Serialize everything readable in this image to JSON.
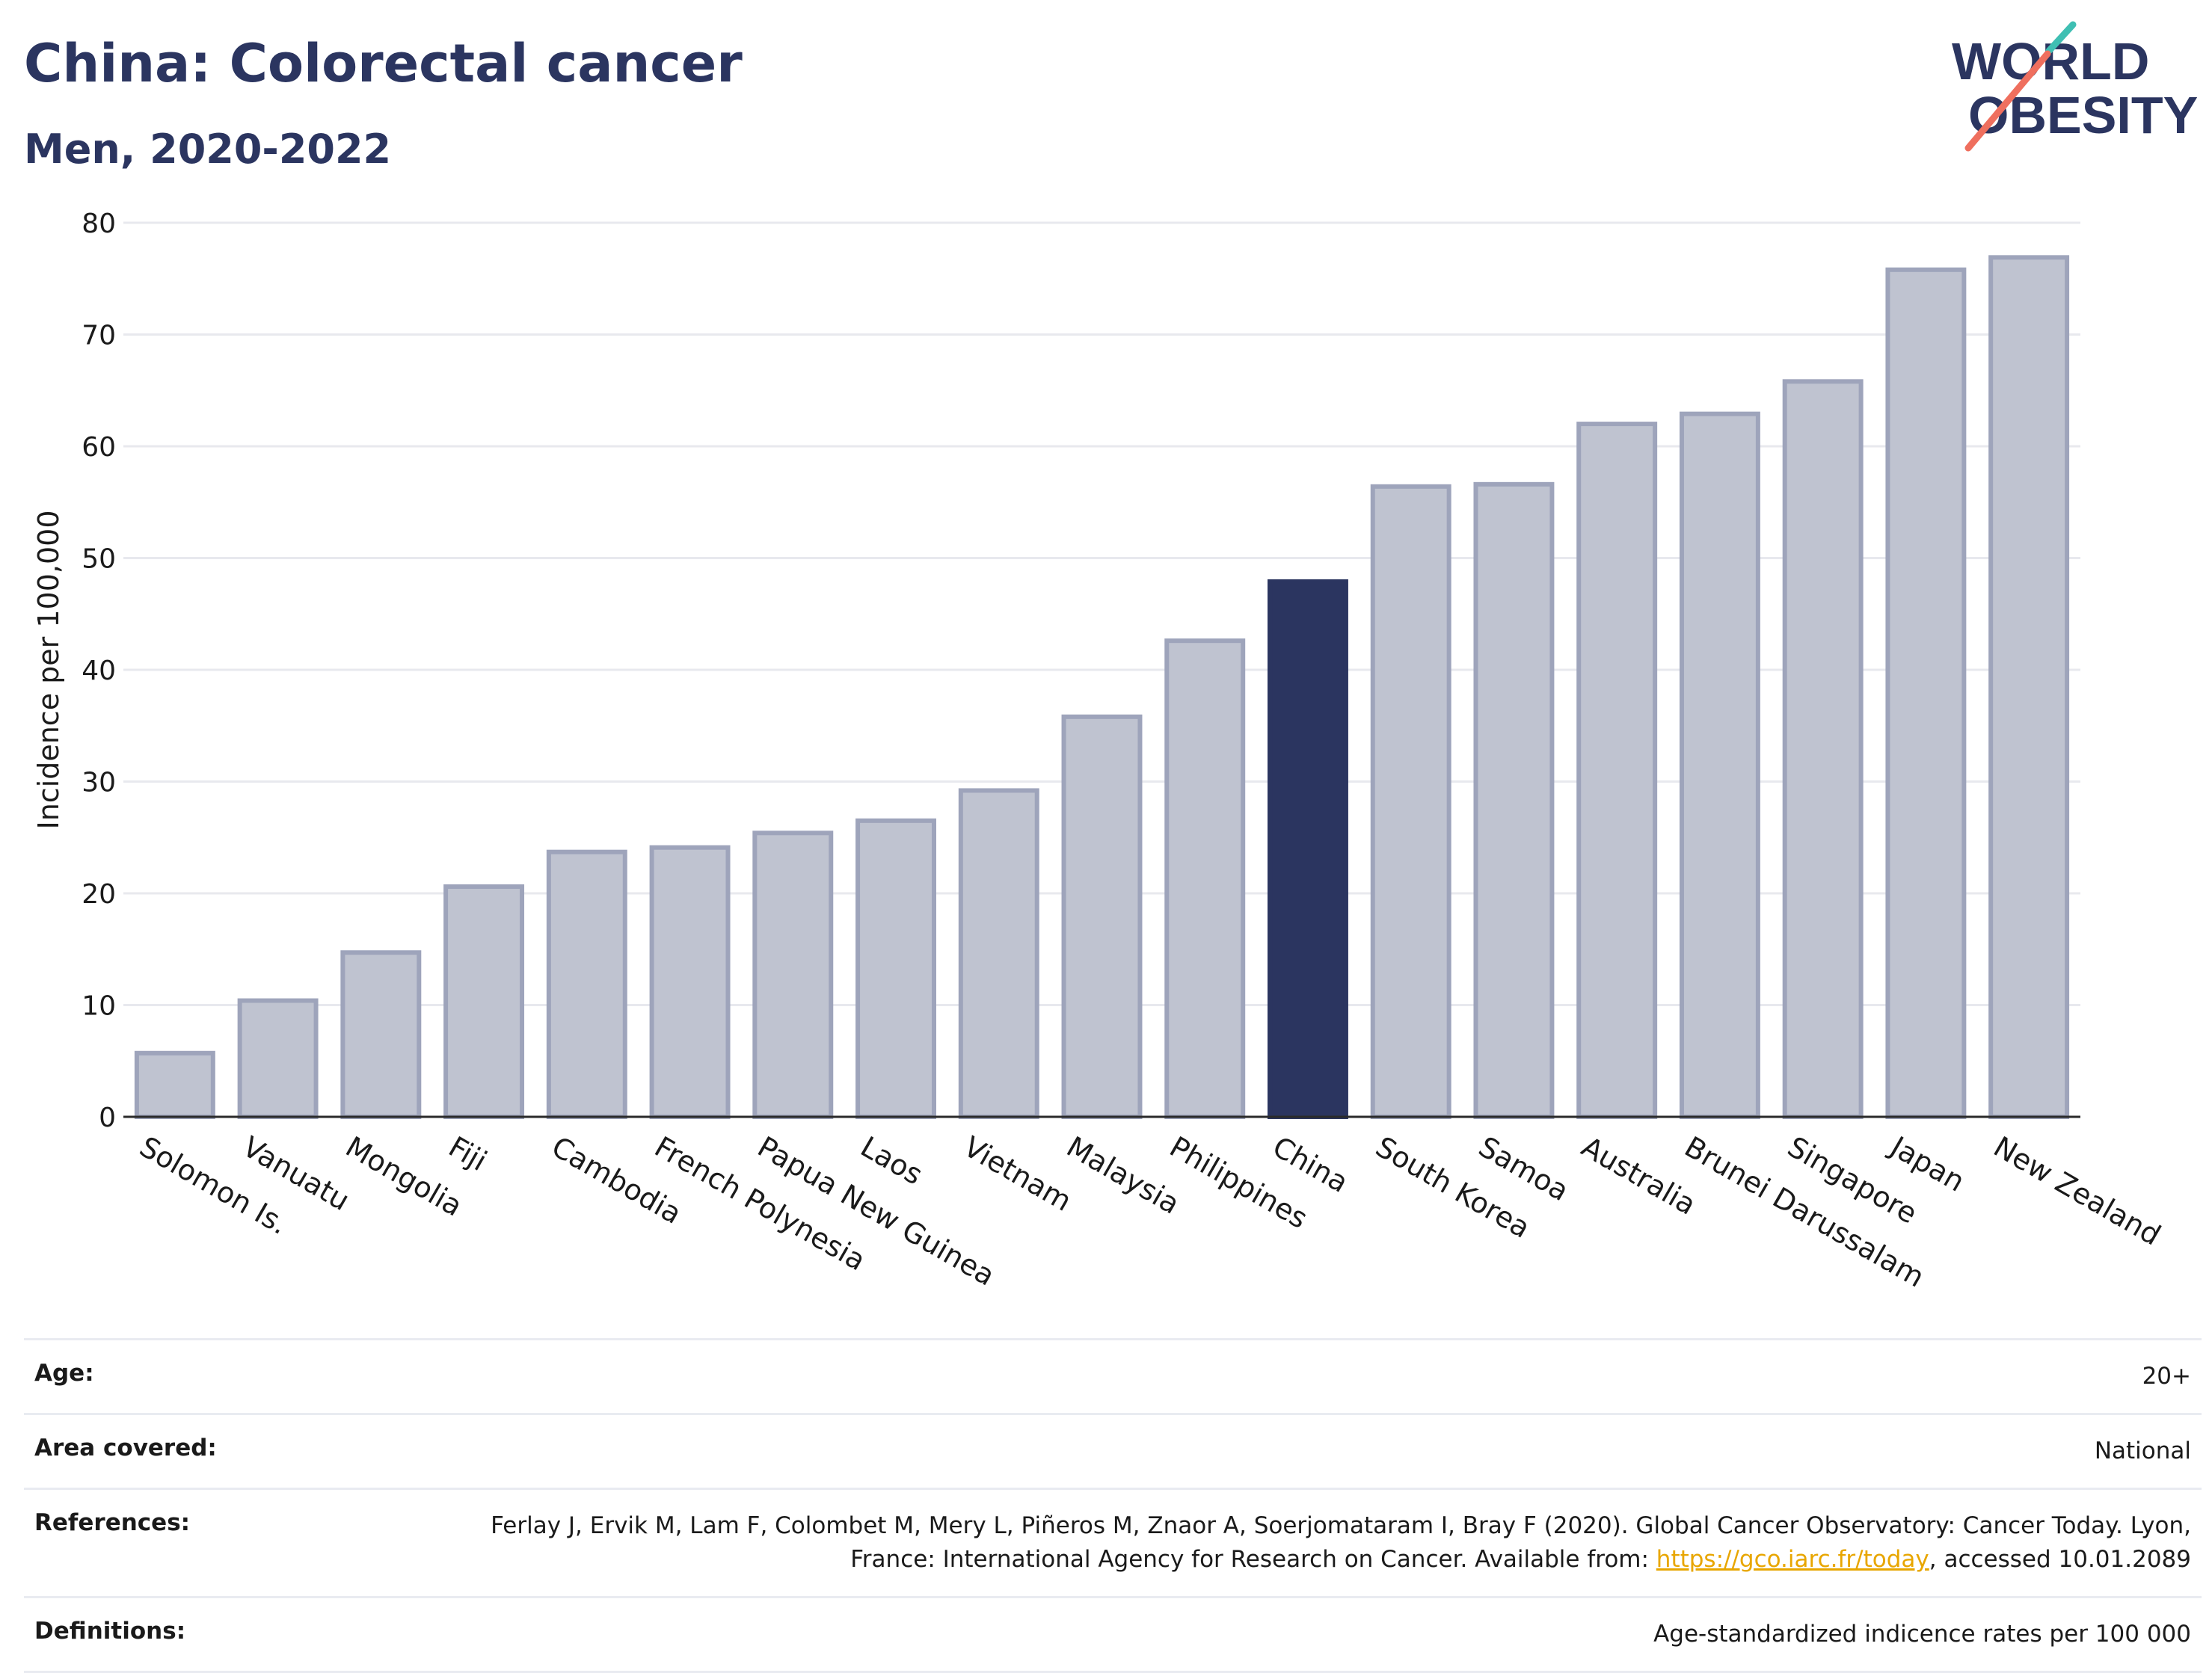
{
  "title": "China: Colorectal cancer",
  "subtitle": "Men, 2020-2022",
  "logo": {
    "line1": "WORLD",
    "line2": "OBESITY",
    "colors": {
      "navy": "#2b3560",
      "teal": "#3fbfb3",
      "coral": "#ef6f5e"
    }
  },
  "colors": {
    "highlight": "#2b3560",
    "bar_fill": "#bfc3d0",
    "bar_stroke": "#9ea4bb",
    "grid": "#e8e9ee"
  },
  "chart_data": {
    "type": "bar",
    "ylabel": "Incidence per 100,000",
    "xlabel": "",
    "ylim": [
      0,
      80
    ],
    "yticks": [
      0,
      10,
      20,
      30,
      40,
      50,
      60,
      70,
      80
    ],
    "grid": true,
    "highlight": "China",
    "categories": [
      "Solomon Is.",
      "Vanuatu",
      "Mongolia",
      "Fiji",
      "Cambodia",
      "French Polynesia",
      "Papua New Guinea",
      "Laos",
      "Vietnam",
      "Malaysia",
      "Philippines",
      "China",
      "South Korea",
      "Samoa",
      "Australia",
      "Brunei Darussalam",
      "Singapore",
      "Japan",
      "New Zealand"
    ],
    "values": [
      5.7,
      10.4,
      14.7,
      20.6,
      23.7,
      24.1,
      25.4,
      26.5,
      29.2,
      35.8,
      42.6,
      47.9,
      56.4,
      56.6,
      62.0,
      62.9,
      65.8,
      75.8,
      76.9
    ]
  },
  "meta": [
    {
      "label": "Age:",
      "value": "20+"
    },
    {
      "label": "Area covered:",
      "value": "National"
    },
    {
      "label": "References:",
      "value_before": "Ferlay J, Ervik M, Lam F, Colombet M, Mery L, Piñeros M, Znaor A, Soerjomataram I, Bray F (2020). Global Cancer Observatory: Cancer Today. Lyon, France: International Agency for Research on Cancer. Available from: ",
      "link": "https://gco.iarc.fr/today",
      "value_after": ", accessed 10.01.2089"
    },
    {
      "label": "Definitions:",
      "value": "Age-standardized indicence rates per 100 000"
    }
  ]
}
